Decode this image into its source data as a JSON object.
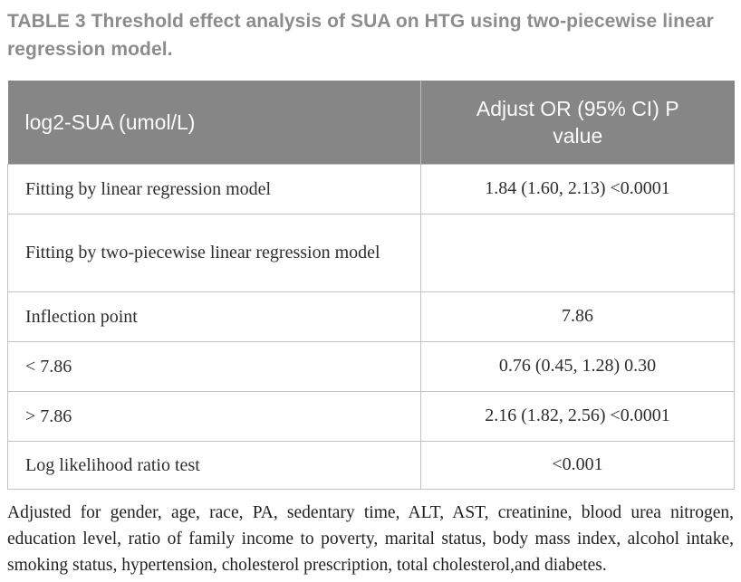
{
  "title": "TABLE 3  Threshold effect analysis of SUA on HTG using two-piecewise linear regression model.",
  "table": {
    "columns": [
      {
        "label": "log2-SUA (umol/L)"
      },
      {
        "label": "Adjust OR (95% CI) P value"
      }
    ],
    "rows": [
      {
        "label": "Fitting by linear regression model",
        "value": "1.84 (1.60, 2.13) <0.0001"
      },
      {
        "label": "Fitting by two-piecewise linear regression model",
        "value": ""
      },
      {
        "label": "Inflection point",
        "value": "7.86"
      },
      {
        "label": "< 7.86",
        "value": "0.76 (0.45, 1.28) 0.30"
      },
      {
        "label": "> 7.86",
        "value": "2.16 (1.82, 2.56) <0.0001"
      },
      {
        "label": "Log likelihood ratio test",
        "value": "<0.001"
      }
    ]
  },
  "footnote": "Adjusted for gender, age, race, PA, sedentary time, ALT, AST, creatinine, blood urea nitrogen, education level, ratio of family income to poverty, marital status, body mass index, alcohol intake, smoking status, hypertension, cholesterol prescription, total cholesterol,and diabetes.",
  "colors": {
    "header_bg": "#868686",
    "header_text": "#fafafa",
    "border": "#c2c2c2",
    "title_text": "#8c8c8c",
    "body_text": "#2e2e2e"
  }
}
